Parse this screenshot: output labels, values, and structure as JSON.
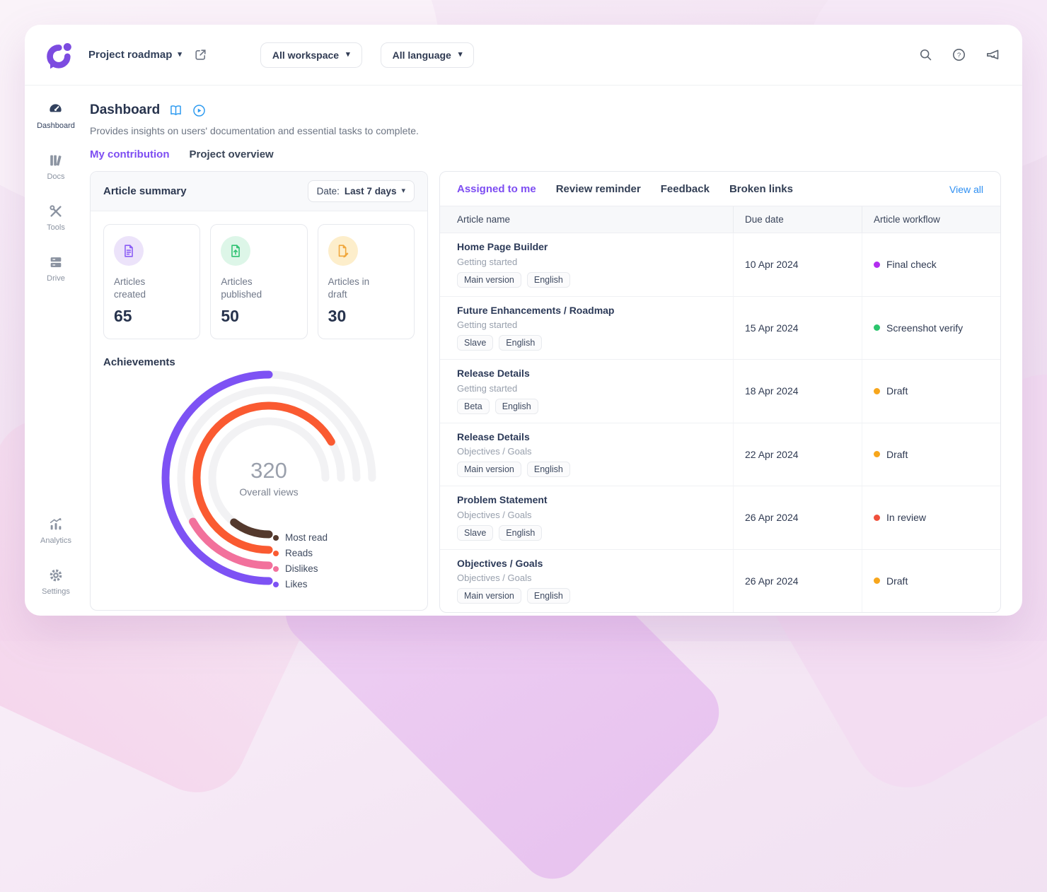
{
  "colors": {
    "brand_purple": "#7c4be0",
    "accent_purple": "#7d4df2",
    "link_blue": "#2e8ff2",
    "title_icon_blue": "#2e9bf0"
  },
  "icons": {
    "logo": "document360-mark",
    "topbar": [
      "external-link",
      "search",
      "help-circle",
      "megaphone"
    ],
    "page_title": [
      "book-open",
      "play-circle"
    ]
  },
  "topbar": {
    "project_name": "Project roadmap",
    "workspace_dropdown": "All workspace",
    "language_dropdown": "All language"
  },
  "sidebar": {
    "items": [
      {
        "label": "Dashboard",
        "active": true
      },
      {
        "label": "Docs",
        "active": false
      },
      {
        "label": "Tools",
        "active": false
      },
      {
        "label": "Drive",
        "active": false
      }
    ],
    "bottom_items": [
      {
        "label": "Analytics"
      },
      {
        "label": "Settings"
      }
    ]
  },
  "page": {
    "title": "Dashboard",
    "description": "Provides insights on users' documentation and essential tasks to complete.",
    "tabs": [
      {
        "label": "My contribution",
        "active": true
      },
      {
        "label": "Project overview",
        "active": false
      }
    ]
  },
  "article_summary": {
    "title": "Article summary",
    "date_label": "Date:",
    "date_value": "Last 7 days",
    "stats": [
      {
        "label": "Articles created",
        "value": "65",
        "icon": "file-lines-icon",
        "icon_bg": "#ece3fa",
        "icon_color": "#8a5cf5"
      },
      {
        "label": "Articles published",
        "value": "50",
        "icon": "file-upload-icon",
        "icon_bg": "#ddf6e8",
        "icon_color": "#2fc272"
      },
      {
        "label": "Articles in draft",
        "value": "30",
        "icon": "file-edit-icon",
        "icon_bg": "#fdeecb",
        "icon_color": "#f0a63a"
      }
    ],
    "achievements_title": "Achievements"
  },
  "chart_data": {
    "type": "radial-bar",
    "title": "Achievements",
    "center_value": "320",
    "center_label": "Overall views",
    "max_sweep_deg": 270,
    "start_position": "6-oclock",
    "direction": "clockwise",
    "track_color": "#f2f2f4",
    "legend_position": "bottom-right",
    "series": [
      {
        "name": "Most read",
        "color": "#54392d",
        "sweep_deg": 38,
        "approx_pct": 14,
        "ring": 3
      },
      {
        "name": "Reads",
        "color": "#fa5a31",
        "sweep_deg": 240,
        "approx_pct": 89,
        "ring": 2
      },
      {
        "name": "Dislikes",
        "color": "#f2719c",
        "sweep_deg": 60,
        "approx_pct": 22,
        "ring": 1
      },
      {
        "name": "Likes",
        "color": "#7d52f4",
        "sweep_deg": 180,
        "approx_pct": 67,
        "ring": 0
      }
    ]
  },
  "tasks_panel": {
    "tabs": [
      {
        "label": "Assigned to me",
        "active": true
      },
      {
        "label": "Review reminder",
        "active": false
      },
      {
        "label": "Feedback",
        "active": false
      },
      {
        "label": "Broken links",
        "active": false
      }
    ],
    "view_all": "View all",
    "table": {
      "columns": [
        "Article name",
        "Due date",
        "Article workflow"
      ],
      "rows": [
        {
          "name": "Home Page Builder",
          "category": "Getting started",
          "chips": [
            "Main version",
            "English"
          ],
          "due": "10 Apr 2024",
          "workflow": "Final check",
          "workflow_color": "#b32df0"
        },
        {
          "name": "Future Enhancements / Roadmap",
          "category": "Getting started",
          "chips": [
            "Slave",
            "English"
          ],
          "due": "15 Apr 2024",
          "workflow": "Screenshot verify",
          "workflow_color": "#2bc56d"
        },
        {
          "name": "Release Details",
          "category": "Getting started",
          "chips": [
            "Beta",
            "English"
          ],
          "due": "18 Apr 2024",
          "workflow": "Draft",
          "workflow_color": "#f7a61c"
        },
        {
          "name": "Release Details",
          "category": "Objectives / Goals",
          "chips": [
            "Main version",
            "English"
          ],
          "due": "22 Apr 2024",
          "workflow": "Draft",
          "workflow_color": "#f7a61c"
        },
        {
          "name": "Problem Statement",
          "category": "Objectives / Goals",
          "chips": [
            "Slave",
            "English"
          ],
          "due": "26 Apr 2024",
          "workflow": "In review",
          "workflow_color": "#f0503c"
        },
        {
          "name": "Objectives / Goals",
          "category": "Objectives / Goals",
          "chips": [
            "Main version",
            "English"
          ],
          "due": "26 Apr 2024",
          "workflow": "Draft",
          "workflow_color": "#f7a61c"
        }
      ]
    }
  }
}
